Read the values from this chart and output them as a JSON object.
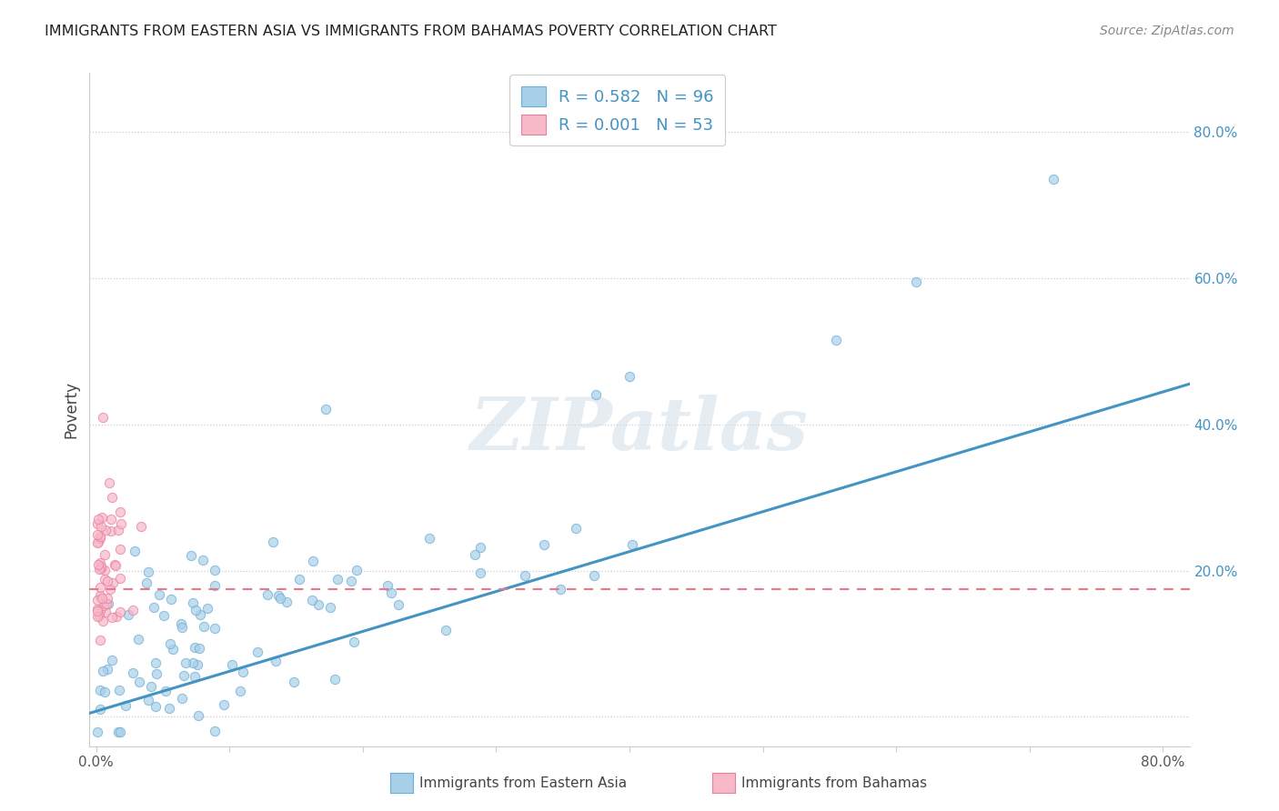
{
  "title": "IMMIGRANTS FROM EASTERN ASIA VS IMMIGRANTS FROM BAHAMAS POVERTY CORRELATION CHART",
  "source": "Source: ZipAtlas.com",
  "ylabel": "Poverty",
  "xlim": [
    -0.005,
    0.82
  ],
  "ylim": [
    -0.04,
    0.88
  ],
  "x_ticks": [
    0.0,
    0.1,
    0.2,
    0.3,
    0.4,
    0.5,
    0.6,
    0.7,
    0.8
  ],
  "x_tick_labels": [
    "0.0%",
    "",
    "",
    "",
    "",
    "",
    "",
    "",
    "80.0%"
  ],
  "y_ticks_right": [
    0.0,
    0.2,
    0.4,
    0.6,
    0.8
  ],
  "y_tick_labels_right": [
    "",
    "20.0%",
    "40.0%",
    "60.0%",
    "80.0%"
  ],
  "background_color": "#ffffff",
  "grid_color": "#cccccc",
  "watermark_text": "ZIPatlas",
  "color_blue": "#a8cfe8",
  "color_blue_edge": "#6baed6",
  "color_pink": "#f7b8c8",
  "color_pink_edge": "#e87fa0",
  "color_blue_line": "#4393c3",
  "color_pink_line": "#e8778a",
  "blue_label": "Immigrants from Eastern Asia",
  "pink_label": "Immigrants from Bahamas",
  "blue_line_x": [
    -0.005,
    0.82
  ],
  "blue_line_y": [
    0.005,
    0.455
  ],
  "pink_line_x": [
    -0.005,
    0.82
  ],
  "pink_line_y": [
    0.175,
    0.175
  ],
  "legend_text_color": "#4393c3",
  "legend_R1": "R = 0.582",
  "legend_N1": "N = 96",
  "legend_R2": "R = 0.001",
  "legend_N2": "N = 53",
  "marker_size": 55,
  "marker_alpha": 0.7
}
